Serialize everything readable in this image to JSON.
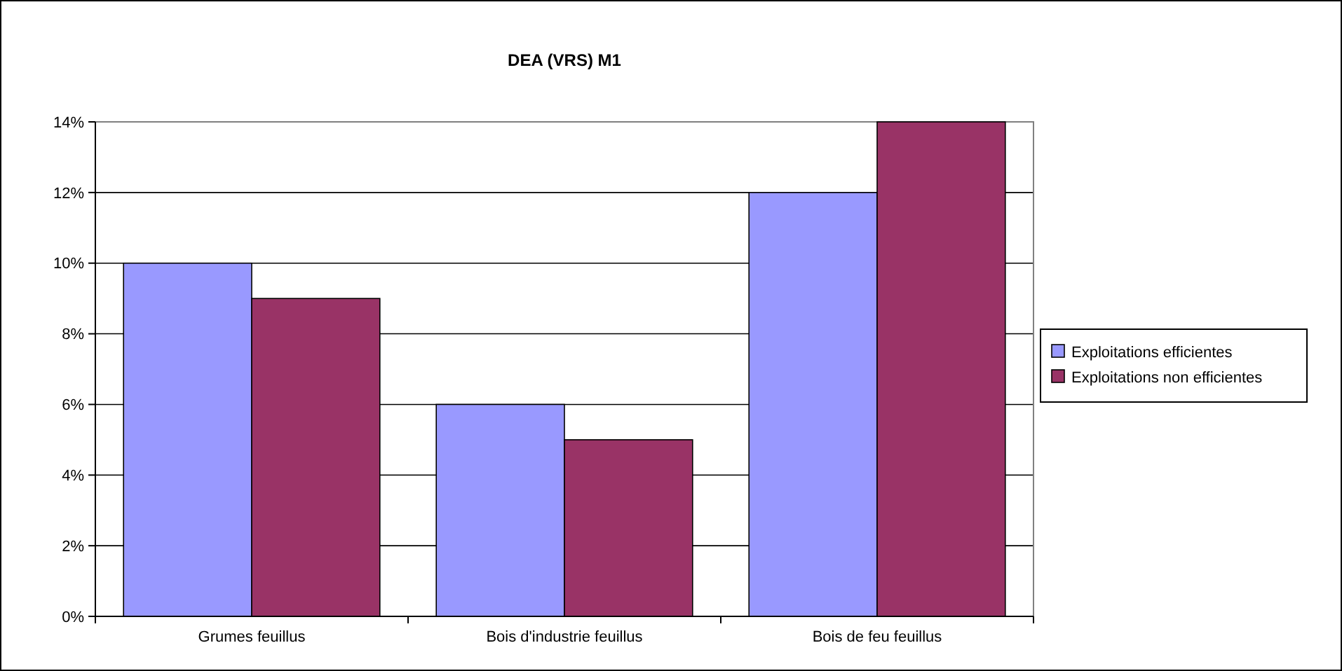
{
  "chart_data": {
    "type": "bar",
    "title": "DEA (VRS) M1",
    "categories": [
      "Grumes feuillus",
      "Bois d'industrie feuillus",
      "Bois de feu feuillus"
    ],
    "series": [
      {
        "name": "Exploitations efficientes",
        "color": "#9999ff",
        "values": [
          10,
          6,
          12
        ]
      },
      {
        "name": "Exploitations non efficientes",
        "color": "#993366",
        "values": [
          9,
          5,
          14
        ]
      }
    ],
    "ylim": [
      0,
      14
    ],
    "yticks": [
      {
        "value": 0,
        "label": "0%"
      },
      {
        "value": 2,
        "label": "2%"
      },
      {
        "value": 4,
        "label": "4%"
      },
      {
        "value": 6,
        "label": "6%"
      },
      {
        "value": 8,
        "label": "8%"
      },
      {
        "value": 10,
        "label": "10%"
      },
      {
        "value": 12,
        "label": "12%"
      },
      {
        "value": 14,
        "label": "14%"
      }
    ],
    "grid": "y",
    "legend": "right"
  }
}
